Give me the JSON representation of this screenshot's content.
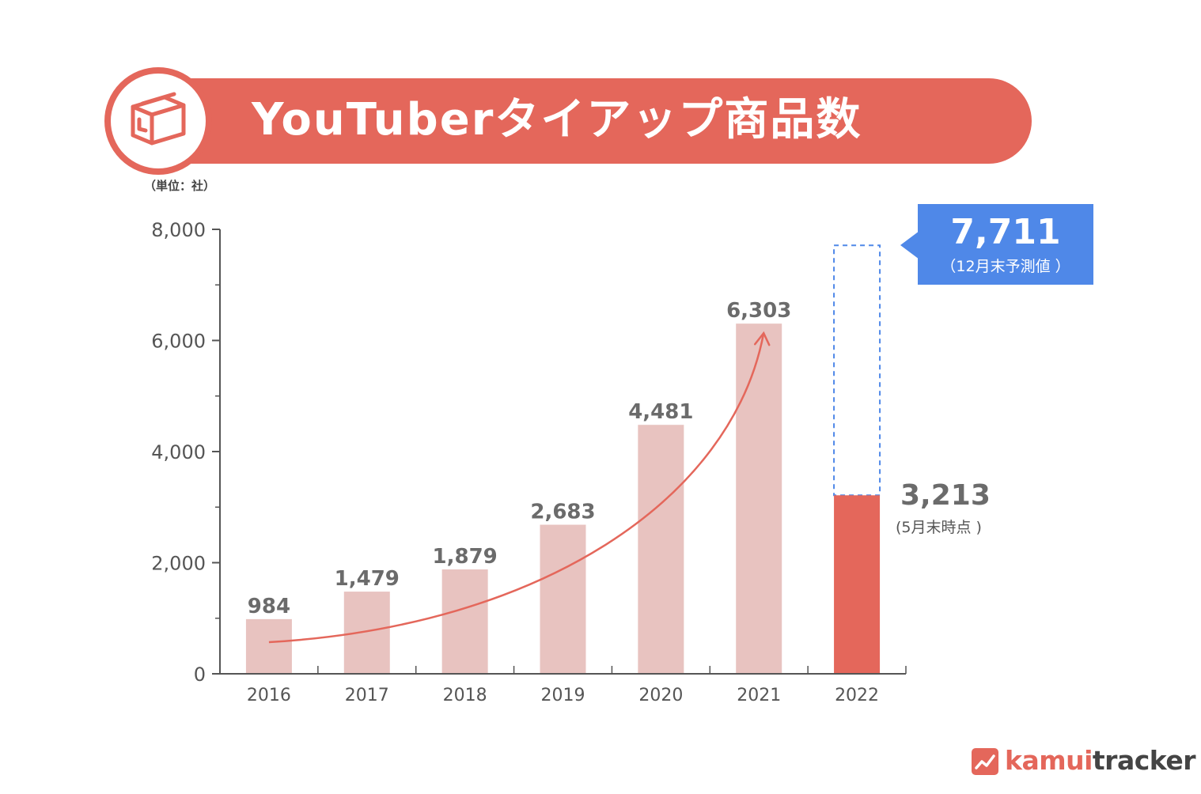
{
  "header": {
    "title": "YouTuberタイアップ商品数",
    "icon": "box-icon"
  },
  "unit_note": "（単位：社）",
  "chart_data": {
    "type": "bar",
    "title": "YouTuberタイアップ商品数",
    "categories": [
      "2016",
      "2017",
      "2018",
      "2019",
      "2020",
      "2021",
      "2022"
    ],
    "values": [
      984,
      1479,
      1879,
      2683,
      4481,
      6303,
      3213
    ],
    "value_labels": [
      "984",
      "1,479",
      "1,879",
      "2,683",
      "4,481",
      "6,303",
      ""
    ],
    "ylim": [
      0,
      8000
    ],
    "yticks": [
      0,
      2000,
      4000,
      6000,
      8000
    ],
    "ytick_labels": [
      "0",
      "2,000",
      "4,000",
      "6,000",
      "8,000"
    ],
    "forecast": {
      "category": "2022",
      "value": 7711,
      "style": "dashed"
    },
    "trend_arrow": {
      "from": "2016",
      "to": "2021"
    },
    "grid": false,
    "colors": {
      "past_bars": "#e8c3c0",
      "current_bar": "#e4675b",
      "forecast_outline": "#4f88e8",
      "trend_arrow": "#e4675b"
    }
  },
  "forecast_callout": {
    "value": "7,711",
    "note": "（12月末予測値 ）"
  },
  "current_label": {
    "value": "3,213",
    "note": "(5月末時点 )"
  },
  "logo": {
    "part1": "kamui",
    "part2": "tracker"
  }
}
